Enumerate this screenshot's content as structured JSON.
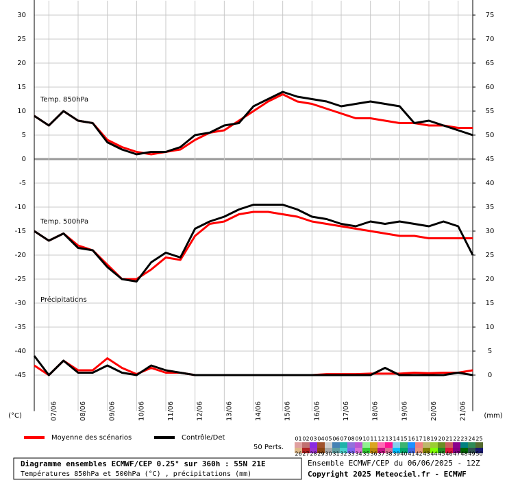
{
  "chart_data": {
    "type": "line",
    "ylabel": "(°C)",
    "y2label": "(mm)",
    "annotations": [
      "Temp. 850hPa",
      "Temp. 500hPa",
      "Précipitations"
    ],
    "ylim": [
      -52.5,
      33
    ],
    "yticks": [
      30,
      25,
      20,
      15,
      10,
      5,
      0,
      -5,
      -10,
      -15,
      -20,
      -25,
      -30,
      -35,
      -40,
      -45
    ],
    "y2lim": [
      -7.5,
      78
    ],
    "y2ticks": [
      75,
      70,
      65,
      60,
      55,
      50,
      45,
      40,
      35,
      30,
      25,
      20,
      15,
      10,
      5,
      0
    ],
    "xlim": [
      0,
      360
    ],
    "xticks": [
      {
        "value": 12,
        "label": "07/06"
      },
      {
        "value": 36,
        "label": "08/06"
      },
      {
        "value": 60,
        "label": "09/06"
      },
      {
        "value": 84,
        "label": "10/06"
      },
      {
        "value": 108,
        "label": "11/06"
      },
      {
        "value": 132,
        "label": "12/06"
      },
      {
        "value": 156,
        "label": "13/06"
      },
      {
        "value": 180,
        "label": "14/06"
      },
      {
        "value": 204,
        "label": "15/06"
      },
      {
        "value": 228,
        "label": "16/06"
      },
      {
        "value": 252,
        "label": "17/06"
      },
      {
        "value": 276,
        "label": "18/06"
      },
      {
        "value": 300,
        "label": "19/06"
      },
      {
        "value": 324,
        "label": "20/06"
      },
      {
        "value": 348,
        "label": "21/06"
      }
    ],
    "grid": true,
    "x": [
      0,
      12,
      24,
      36,
      48,
      60,
      72,
      84,
      96,
      108,
      120,
      132,
      144,
      156,
      168,
      180,
      192,
      204,
      216,
      228,
      240,
      252,
      264,
      276,
      288,
      300,
      312,
      324,
      336,
      348,
      360
    ],
    "series": [
      {
        "name": "Moyenne des scénarios",
        "color": "#ff0000",
        "values": [
          9,
          7,
          10,
          8,
          7.5,
          4,
          2.5,
          1.5,
          1,
          1.5,
          2,
          4,
          5.5,
          6,
          8,
          10,
          12,
          13.5,
          12,
          11.5,
          10.5,
          9.5,
          8.5,
          8.5,
          8,
          7.5,
          7.5,
          7,
          7,
          6.5,
          6.5
        ]
      },
      {
        "name": "Contrôle/Det",
        "color": "#000000",
        "values": [
          9,
          7,
          10,
          8,
          7.5,
          3.5,
          2,
          1,
          1.5,
          1.5,
          2.5,
          5,
          5.5,
          7,
          7.5,
          11,
          12.5,
          14,
          13,
          12.5,
          12,
          11,
          11.5,
          12,
          11.5,
          11,
          7.5,
          8,
          7,
          6,
          5
        ]
      },
      {
        "color": "#ff0000",
        "values": [
          -15,
          -17,
          -15.5,
          -18,
          -19,
          -22,
          -25,
          -25,
          -23,
          -20.5,
          -21,
          -16,
          -13.5,
          -13,
          -11.5,
          -11,
          -11,
          -11.5,
          -12,
          -13,
          -13.5,
          -14,
          -14.5,
          -15,
          -15.5,
          -16,
          -16,
          -16.5,
          -16.5,
          -16.5,
          -16.5
        ]
      },
      {
        "color": "#000000",
        "values": [
          -15,
          -17,
          -15.5,
          -18.5,
          -19,
          -22.5,
          -25,
          -25.5,
          -21.5,
          -19.5,
          -20.5,
          -14.5,
          -13,
          -12,
          -10.5,
          -9.5,
          -9.5,
          -9.5,
          -10.5,
          -12,
          -12.5,
          -13.5,
          -14,
          -13,
          -13.5,
          -13,
          -13.5,
          -14,
          -13,
          -14,
          -20
        ]
      },
      {
        "color": "#ff0000",
        "axis": "y2",
        "values": [
          2,
          0,
          3,
          1,
          1,
          3.5,
          1.5,
          0.2,
          1.5,
          0.5,
          0.5,
          0,
          0,
          0,
          0,
          0,
          0,
          0,
          0,
          0,
          0.2,
          0.2,
          0.2,
          0.3,
          0.3,
          0.3,
          0.5,
          0.4,
          0.5,
          0.5,
          1
        ]
      },
      {
        "color": "#000000",
        "axis": "y2",
        "values": [
          4,
          0,
          3,
          0.5,
          0.5,
          2,
          0.5,
          0,
          2,
          1,
          0.5,
          0,
          0,
          0,
          0,
          0,
          0,
          0,
          0,
          0,
          0,
          0,
          0,
          0,
          1.5,
          0,
          0,
          0,
          0,
          0.5,
          0
        ]
      }
    ],
    "perts_label": "50 Perts.",
    "perts": [
      {
        "label": "01",
        "color": "#e0a0a0"
      },
      {
        "label": "02",
        "color": "#c07070"
      },
      {
        "label": "03",
        "color": "#8a2be2"
      },
      {
        "label": "04",
        "color": "#a0522d"
      },
      {
        "label": "05",
        "color": "#d0d0d0"
      },
      {
        "label": "06",
        "color": "#4682b4"
      },
      {
        "label": "07",
        "color": "#20b2aa"
      },
      {
        "label": "08",
        "color": "#9370db"
      },
      {
        "label": "09",
        "color": "#ba55d3"
      },
      {
        "label": "10",
        "color": "#90ee90"
      },
      {
        "label": "11",
        "color": "#daa520"
      },
      {
        "label": "12",
        "color": "#ff69b4"
      },
      {
        "label": "13",
        "color": "#ff1493"
      },
      {
        "label": "14",
        "color": "#87ceeb"
      },
      {
        "label": "15",
        "color": "#3cb371"
      },
      {
        "label": "16",
        "color": "#1e90ff"
      },
      {
        "label": "17",
        "color": "#f08080"
      },
      {
        "label": "18",
        "color": "#bdb76b"
      },
      {
        "label": "19",
        "color": "#9acd32"
      },
      {
        "label": "20",
        "color": "#6b8e23"
      },
      {
        "label": "21",
        "color": "#cd5c5c"
      },
      {
        "label": "22",
        "color": "#8b008b"
      },
      {
        "label": "23",
        "color": "#008080"
      },
      {
        "label": "24",
        "color": "#2e8b57"
      },
      {
        "label": "25",
        "color": "#556b2f"
      },
      {
        "label": "26",
        "color": "#deb887"
      },
      {
        "label": "27",
        "color": "#b22222"
      },
      {
        "label": "28",
        "color": "#9932cc"
      },
      {
        "label": "29",
        "color": "#8b4513"
      },
      {
        "label": "30",
        "color": "#a9a9a9"
      },
      {
        "label": "31",
        "color": "#5f9ea0"
      },
      {
        "label": "32",
        "color": "#48d1cc"
      },
      {
        "label": "33",
        "color": "#7b68ee"
      },
      {
        "label": "34",
        "color": "#da70d6"
      },
      {
        "label": "35",
        "color": "#32cd32"
      },
      {
        "label": "36",
        "color": "#b8860b"
      },
      {
        "label": "37",
        "color": "#c71585"
      },
      {
        "label": "38",
        "color": "#db7093"
      },
      {
        "label": "39",
        "color": "#00bfff"
      },
      {
        "label": "40",
        "color": "#00a86b"
      },
      {
        "label": "41",
        "color": "#4169e1"
      },
      {
        "label": "42",
        "color": "#e9967a"
      },
      {
        "label": "43",
        "color": "#808000"
      },
      {
        "label": "44",
        "color": "#7fff00"
      },
      {
        "label": "45",
        "color": "#228b22"
      },
      {
        "label": "46",
        "color": "#dc143c"
      },
      {
        "label": "47",
        "color": "#800080"
      },
      {
        "label": "48",
        "color": "#006400"
      },
      {
        "label": "49",
        "color": "#2f4f4f"
      },
      {
        "label": "50",
        "color": "#191970"
      }
    ],
    "footer": {
      "title": "Diagramme ensembles ECMWF/CEP 0.25° sur 360h : 55N 21E",
      "subtitle": "Températures 850hPa et 500hPa (°C) , précipitations (mm)",
      "run": "Ensemble ECMWF/CEP du 06/06/2025 - 12Z",
      "copyright": "Copyright 2025 Meteociel.fr - ECMWF"
    }
  }
}
